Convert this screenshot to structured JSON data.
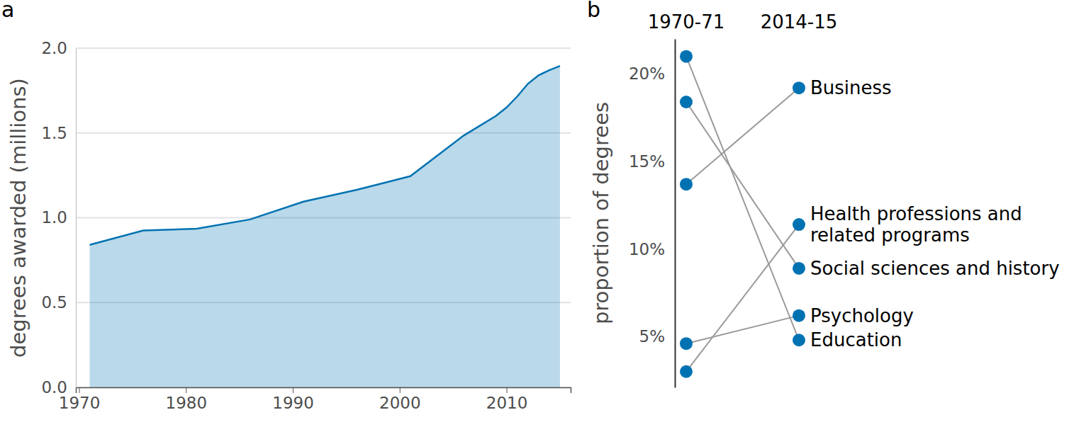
{
  "chart_data": [
    {
      "type": "area",
      "title": "a",
      "x": [
        1971,
        1976,
        1981,
        1986,
        1991,
        1996,
        2001,
        2006,
        2009,
        2010,
        2011,
        2012,
        2013,
        2014,
        2015
      ],
      "values": [
        0.84,
        0.925,
        0.935,
        0.99,
        1.095,
        1.165,
        1.245,
        1.485,
        1.6,
        1.65,
        1.715,
        1.79,
        1.84,
        1.87,
        1.895
      ],
      "ylabel": "degrees awarded (millions)",
      "color": "#0072b2",
      "xlim": [
        1969.7,
        2016
      ],
      "xticks": [
        1970,
        1980,
        1990,
        2000,
        2010
      ],
      "ylim": [
        0,
        2
      ],
      "yticks": [
        {
          "value": 0,
          "label": "0.0"
        },
        0.5,
        {
          "value": 1,
          "label": "1.0"
        },
        1.5,
        {
          "value": 2,
          "label": "2.0"
        }
      ],
      "grid": true
    },
    {
      "type": "slope",
      "title": "b",
      "categories": [
        "1970-71",
        "2014-15"
      ],
      "ylabel": "proportion of degrees",
      "color": "#0072b2",
      "ylim": [
        2.1,
        22
      ],
      "yticks": [
        {
          "value": 5,
          "label": "5%"
        },
        {
          "value": 10,
          "label": "10%"
        },
        {
          "value": 15,
          "label": "15%"
        },
        {
          "value": 20,
          "label": "20%"
        }
      ],
      "series": [
        {
          "name": "Business",
          "values": [
            13.7,
            19.2
          ]
        },
        {
          "name": "Health professions and related programs",
          "values": [
            3.0,
            11.4
          ]
        },
        {
          "name": "Social sciences and history",
          "values": [
            18.4,
            8.9
          ]
        },
        {
          "name": "Psychology",
          "values": [
            4.6,
            6.2
          ]
        },
        {
          "name": "Education",
          "values": [
            21.0,
            4.8
          ]
        }
      ]
    }
  ]
}
